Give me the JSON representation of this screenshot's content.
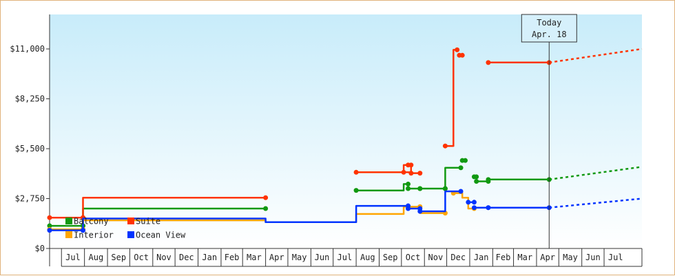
{
  "chart_data": {
    "type": "line",
    "title": "",
    "xlabel": "",
    "ylabel": "",
    "x_unit": "month",
    "xlim": [
      "2023-06-15",
      "2025-08-21"
    ],
    "ylim": [
      0,
      12900
    ],
    "yticks": [
      0,
      2750,
      5500,
      8250,
      11000
    ],
    "ytick_labels": [
      "$0",
      "$2,750",
      "$5,500",
      "$8,250",
      "$11,000"
    ],
    "grid": false,
    "background": "gradient light-blue",
    "months": [
      {
        "label": "Jul",
        "start": "2023-07-01"
      },
      {
        "label": "Aug",
        "start": "2023-08-01"
      },
      {
        "label": "Sep",
        "start": "2023-09-01"
      },
      {
        "label": "Oct",
        "start": "2023-10-01"
      },
      {
        "label": "Nov",
        "start": "2023-11-01"
      },
      {
        "label": "Dec",
        "start": "2023-12-01"
      },
      {
        "label": "Jan",
        "start": "2024-01-01"
      },
      {
        "label": "Feb",
        "start": "2024-02-01"
      },
      {
        "label": "Mar",
        "start": "2024-03-01"
      },
      {
        "label": "Apr",
        "start": "2024-04-01"
      },
      {
        "label": "May",
        "start": "2024-05-01"
      },
      {
        "label": "Jun",
        "start": "2024-06-01"
      },
      {
        "label": "Jul",
        "start": "2024-07-01"
      },
      {
        "label": "Aug",
        "start": "2024-08-01"
      },
      {
        "label": "Sep",
        "start": "2024-09-01"
      },
      {
        "label": "Oct",
        "start": "2024-10-01"
      },
      {
        "label": "Nov",
        "start": "2024-11-01"
      },
      {
        "label": "Dec",
        "start": "2024-12-01"
      },
      {
        "label": "Jan",
        "start": "2025-01-01"
      },
      {
        "label": "Feb",
        "start": "2025-02-01"
      },
      {
        "label": "Mar",
        "start": "2025-03-01"
      },
      {
        "label": "Apr",
        "start": "2025-04-01"
      },
      {
        "label": "May",
        "start": "2025-05-01"
      },
      {
        "label": "Jun",
        "start": "2025-06-01"
      },
      {
        "label": "Jul",
        "start": "2025-07-01"
      }
    ],
    "today": {
      "label_line1": "Today",
      "label_line2": "Apr. 18",
      "date": "2025-04-18"
    },
    "legend": {
      "placement": "bottom-left"
    },
    "series": [
      {
        "name": "Balcony",
        "color": "#119911",
        "segments": [
          [
            [
              "2023-06-15",
              1250
            ],
            [
              "2023-07-30",
              1250
            ]
          ],
          [
            [
              "2023-07-30",
              1250
            ],
            [
              "2023-07-30",
              2200
            ],
            [
              "2024-04-01",
              2200
            ]
          ],
          [
            [
              "2024-08-01",
              3200
            ],
            [
              "2024-10-04",
              3200
            ],
            [
              "2024-10-04",
              3550
            ],
            [
              "2024-10-10",
              3550
            ]
          ],
          [
            [
              "2024-10-10",
              3300
            ],
            [
              "2024-10-26",
              3300
            ]
          ],
          [
            [
              "2024-10-26",
              3300
            ],
            [
              "2024-11-29",
              3300
            ]
          ],
          [
            [
              "2024-11-29",
              3300
            ],
            [
              "2024-11-29",
              4450
            ],
            [
              "2024-12-20",
              4450
            ]
          ],
          [
            [
              "2024-12-22",
              4850
            ],
            [
              "2024-12-26",
              4850
            ]
          ],
          [
            [
              "2025-01-07",
              3950
            ],
            [
              "2025-01-10",
              3950
            ]
          ],
          [
            [
              "2025-01-10",
              3700
            ],
            [
              "2025-01-26",
              3700
            ]
          ],
          [
            [
              "2025-01-26",
              3800
            ],
            [
              "2025-04-18",
              3800
            ]
          ]
        ],
        "projection": [
          [
            "2025-04-18",
            3800
          ],
          [
            "2025-08-21",
            4500
          ]
        ]
      },
      {
        "name": "Suite",
        "color": "#ff3300",
        "segments": [
          [
            [
              "2023-06-15",
              1700
            ],
            [
              "2023-07-30",
              1700
            ]
          ],
          [
            [
              "2023-07-30",
              1700
            ],
            [
              "2023-07-30",
              2800
            ],
            [
              "2024-04-01",
              2800
            ]
          ],
          [
            [
              "2024-08-01",
              4200
            ],
            [
              "2024-10-04",
              4200
            ],
            [
              "2024-10-04",
              4600
            ],
            [
              "2024-10-10",
              4600
            ]
          ],
          [
            [
              "2024-10-04",
              4200
            ],
            [
              "2024-10-14",
              4200
            ],
            [
              "2024-10-14",
              4600
            ]
          ],
          [
            [
              "2024-10-14",
              4150
            ],
            [
              "2024-10-26",
              4150
            ]
          ],
          [
            [
              "2024-11-29",
              5650
            ],
            [
              "2024-12-10",
              5650
            ],
            [
              "2024-12-10",
              10950
            ],
            [
              "2024-12-15",
              10950
            ]
          ],
          [
            [
              "2024-12-18",
              10650
            ],
            [
              "2024-12-22",
              10650
            ]
          ],
          [
            [
              "2025-01-26",
              10250
            ],
            [
              "2025-04-18",
              10250
            ]
          ]
        ],
        "projection": [
          [
            "2025-04-18",
            10250
          ],
          [
            "2025-08-21",
            11000
          ]
        ]
      },
      {
        "name": "Interior",
        "color": "#ffa500",
        "segments": [
          [
            [
              "2023-06-15",
              1050
            ],
            [
              "2023-07-30",
              1050
            ]
          ],
          [
            [
              "2023-07-30",
              1050
            ],
            [
              "2023-07-30",
              1550
            ],
            [
              "2024-04-01",
              1550
            ],
            [
              "2024-04-01",
              1450
            ],
            [
              "2024-08-01",
              1450
            ],
            [
              "2024-08-01",
              1900
            ],
            [
              "2024-10-04",
              1900
            ],
            [
              "2024-10-04",
              2300
            ],
            [
              "2024-10-10",
              2300
            ]
          ],
          [
            [
              "2024-10-10",
              2300
            ],
            [
              "2024-10-26",
              2300
            ]
          ],
          [
            [
              "2024-10-26",
              2300
            ],
            [
              "2024-10-26",
              1950
            ],
            [
              "2024-11-29",
              1950
            ]
          ],
          [
            [
              "2024-12-10",
              3050
            ],
            [
              "2024-12-22",
              3050
            ],
            [
              "2024-12-22",
              2800
            ],
            [
              "2024-12-30",
              2800
            ],
            [
              "2024-12-30",
              2200
            ],
            [
              "2025-01-07",
              2200
            ]
          ]
        ],
        "projection": null
      },
      {
        "name": "Ocean View",
        "color": "#0033ff",
        "segments": [
          [
            [
              "2023-06-15",
              1000
            ],
            [
              "2023-07-30",
              1000
            ]
          ],
          [
            [
              "2023-07-30",
              1000
            ],
            [
              "2023-07-30",
              1650
            ],
            [
              "2024-04-01",
              1650
            ],
            [
              "2024-04-01",
              1450
            ],
            [
              "2024-08-01",
              1450
            ],
            [
              "2024-08-01",
              2350
            ],
            [
              "2024-10-04",
              2350
            ],
            [
              "2024-10-04",
              2350
            ],
            [
              "2024-10-10",
              2350
            ]
          ],
          [
            [
              "2024-10-10",
              2200
            ],
            [
              "2024-10-26",
              2200
            ]
          ],
          [
            [
              "2024-10-26",
              2050
            ],
            [
              "2024-11-29",
              2050
            ],
            [
              "2024-11-29",
              3150
            ],
            [
              "2024-12-20",
              3150
            ]
          ],
          [
            [
              "2024-12-30",
              2550
            ],
            [
              "2025-01-07",
              2550
            ]
          ],
          [
            [
              "2025-01-07",
              2250
            ],
            [
              "2025-01-26",
              2250
            ]
          ],
          [
            [
              "2025-01-26",
              2250
            ],
            [
              "2025-04-18",
              2250
            ]
          ]
        ],
        "projection": [
          [
            "2025-04-18",
            2250
          ],
          [
            "2025-08-21",
            2750
          ]
        ]
      }
    ]
  }
}
